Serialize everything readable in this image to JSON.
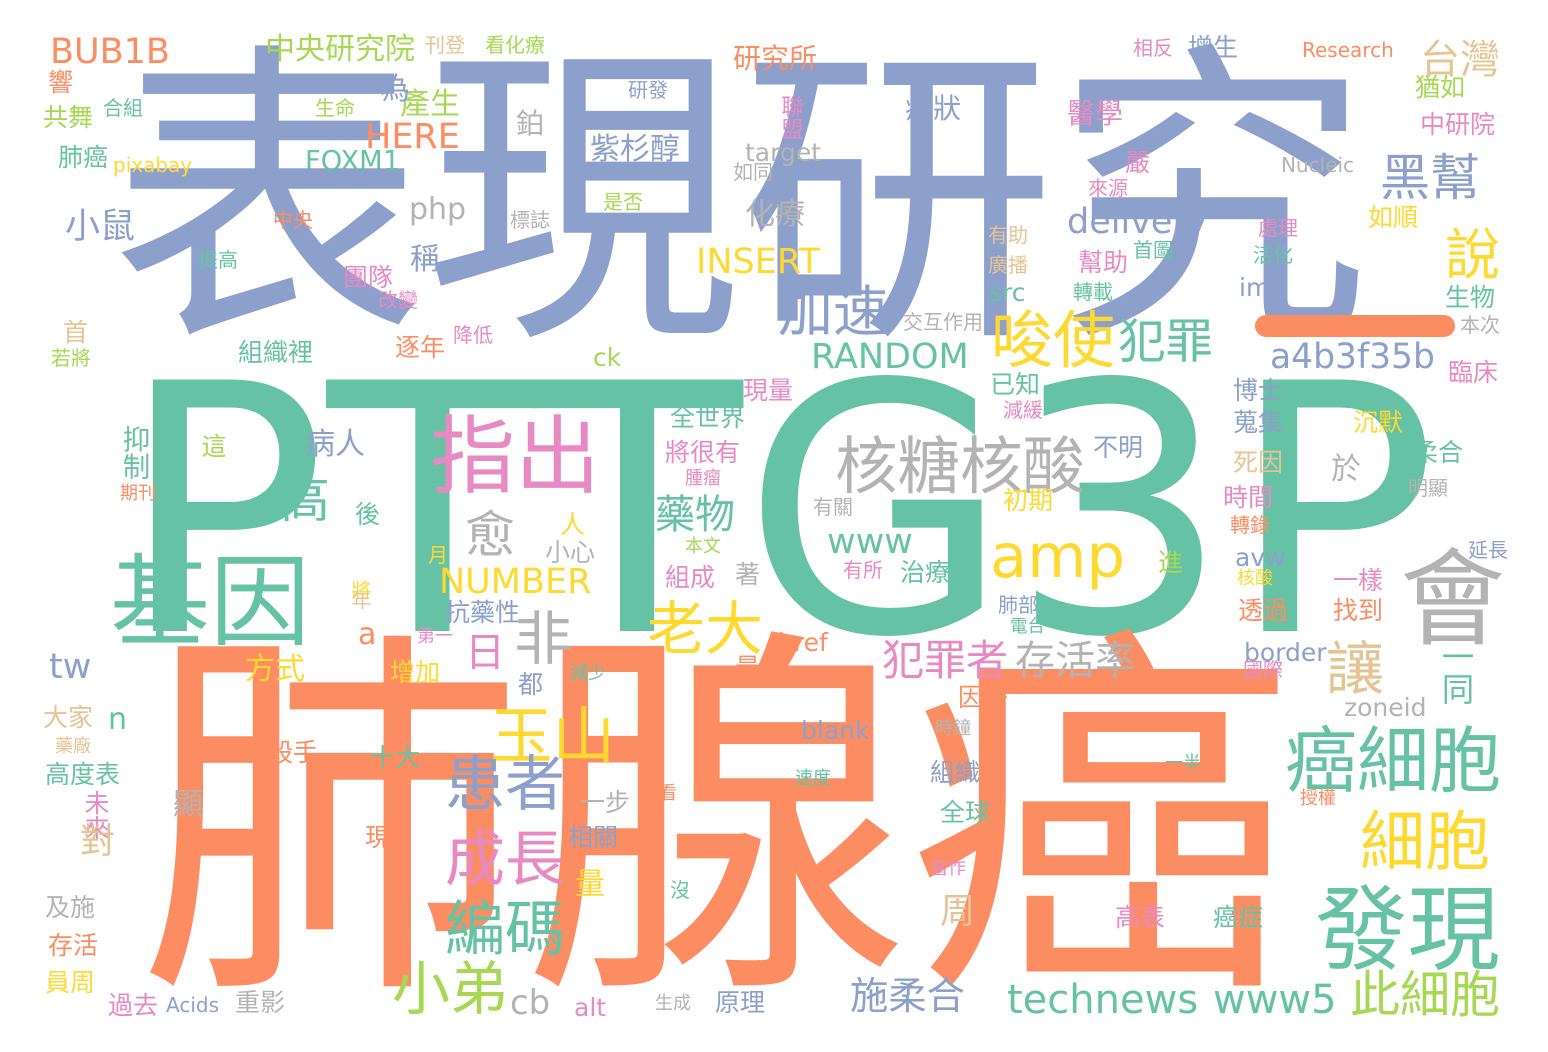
{
  "palette": {
    "orange": "#fc8d62",
    "green": "#66c2a5",
    "blue": "#8da0cb",
    "pink": "#e78ac3",
    "lime": "#a6d854",
    "yellow": "#ffd92f",
    "tan": "#e5c494",
    "gray": "#b3b3b3"
  },
  "words": [
    {
      "text": "表現研究",
      "color": "blue"
    },
    {
      "text": "PTTG3P",
      "color": "green"
    },
    {
      "text": "肺腺癌",
      "color": "orange"
    },
    {
      "text": "基因",
      "color": "green"
    },
    {
      "text": "指出",
      "color": "pink"
    },
    {
      "text": "amp",
      "color": "yellow"
    },
    {
      "text": "會",
      "color": "gray"
    },
    {
      "text": "核糖核酸",
      "color": "gray"
    },
    {
      "text": "唆使",
      "color": "yellow"
    },
    {
      "text": "犯罪",
      "color": "green"
    },
    {
      "text": "加速",
      "color": "blue"
    },
    {
      "text": "聯盟",
      "color": "pink"
    },
    {
      "text": "黑幫",
      "color": "blue"
    },
    {
      "text": "說",
      "color": "yellow"
    },
    {
      "text": "癌細胞",
      "color": "green"
    },
    {
      "text": "細胞",
      "color": "yellow"
    },
    {
      "text": "發現",
      "color": "green"
    },
    {
      "text": "玉山",
      "color": "yellow"
    },
    {
      "text": "患者",
      "color": "blue"
    },
    {
      "text": "成長",
      "color": "pink"
    },
    {
      "text": "編碼",
      "color": "green"
    },
    {
      "text": "老大",
      "color": "yellow"
    },
    {
      "text": "小弟",
      "color": "lime"
    },
    {
      "text": "非",
      "color": "gray"
    },
    {
      "text": "愈",
      "color": "gray"
    },
    {
      "text": "日",
      "color": "pink"
    },
    {
      "text": "高",
      "color": "green"
    },
    {
      "text": "抑制",
      "color": "green"
    },
    {
      "text": "讓",
      "color": "tan"
    },
    {
      "text": "一同",
      "color": "green"
    },
    {
      "text": "犯罪者",
      "color": "pink"
    },
    {
      "text": "存活率",
      "color": "gray"
    },
    {
      "text": "此細胞",
      "color": "lime"
    },
    {
      "text": "technews",
      "color": "green"
    },
    {
      "text": "www5",
      "color": "green"
    },
    {
      "text": "施柔合",
      "color": "blue"
    },
    {
      "text": "RANDOM",
      "color": "green"
    },
    {
      "text": "INSERT",
      "color": "yellow"
    },
    {
      "text": "NUMBER",
      "color": "yellow"
    },
    {
      "text": "delivery",
      "color": "blue"
    },
    {
      "text": "a4b3f35b",
      "color": "blue"
    },
    {
      "text": "www",
      "color": "green"
    },
    {
      "text": "藥物",
      "color": "green"
    },
    {
      "text": "未來",
      "color": "pink"
    },
    {
      "text": "台灣",
      "color": "tan"
    },
    {
      "text": "BUB1B",
      "color": "orange"
    },
    {
      "text": "中央研究院",
      "color": "lime"
    },
    {
      "text": "研究所",
      "color": "orange"
    },
    {
      "text": "HERE",
      "color": "orange"
    },
    {
      "text": "FOXM1",
      "color": "green"
    },
    {
      "text": "紫杉醇",
      "color": "blue"
    },
    {
      "text": "化療",
      "color": "gray"
    },
    {
      "text": "php",
      "color": "gray"
    },
    {
      "text": "小鼠",
      "color": "blue"
    },
    {
      "text": "病人",
      "color": "blue"
    },
    {
      "text": "方式",
      "color": "yellow"
    },
    {
      "text": "tw",
      "color": "blue"
    },
    {
      "text": "a",
      "color": "orange"
    },
    {
      "text": "n",
      "color": "green"
    },
    {
      "text": "cb",
      "color": "gray"
    },
    {
      "text": "border",
      "color": "blue"
    },
    {
      "text": "zoneid",
      "color": "gray"
    },
    {
      "text": "blank",
      "color": "blue"
    },
    {
      "text": "href",
      "color": "orange"
    },
    {
      "text": "alt",
      "color": "pink"
    },
    {
      "text": "img",
      "color": "blue"
    },
    {
      "text": "src",
      "color": "green"
    },
    {
      "text": "ck",
      "color": "lime"
    },
    {
      "text": "avw",
      "color": "blue"
    },
    {
      "text": "target",
      "color": "gray"
    },
    {
      "text": "Research",
      "color": "orange"
    },
    {
      "text": "Nucleic",
      "color": "gray"
    },
    {
      "text": "Acids",
      "color": "blue"
    },
    {
      "text": "pixabay",
      "color": "yellow"
    },
    {
      "text": "增生",
      "color": "blue"
    },
    {
      "text": "相反",
      "color": "pink"
    },
    {
      "text": "刊登",
      "color": "tan"
    },
    {
      "text": "看化療",
      "color": "lime"
    },
    {
      "text": "症狀",
      "color": "blue"
    },
    {
      "text": "醫學",
      "color": "pink"
    },
    {
      "text": "產生",
      "color": "lime"
    },
    {
      "text": "為",
      "color": "blue"
    },
    {
      "text": "鉑",
      "color": "gray"
    },
    {
      "text": "研發",
      "color": "blue"
    },
    {
      "text": "生命",
      "color": "lime"
    },
    {
      "text": "合組",
      "color": "green"
    },
    {
      "text": "共舞",
      "color": "lime"
    },
    {
      "text": "肺癌",
      "color": "green"
    },
    {
      "text": "響",
      "color": "orange"
    },
    {
      "text": "猶如",
      "color": "lime"
    },
    {
      "text": "中研院",
      "color": "pink"
    },
    {
      "text": "嚴",
      "color": "pink"
    },
    {
      "text": "來源",
      "color": "pink"
    },
    {
      "text": "如同",
      "color": "gray"
    },
    {
      "text": "是否",
      "color": "lime"
    },
    {
      "text": "標誌",
      "color": "gray"
    },
    {
      "text": "中央",
      "color": "orange"
    },
    {
      "text": "提高",
      "color": "green"
    },
    {
      "text": "稱",
      "color": "blue"
    },
    {
      "text": "團隊",
      "color": "pink"
    },
    {
      "text": "改變",
      "color": "pink"
    },
    {
      "text": "有助",
      "color": "tan"
    },
    {
      "text": "首圖",
      "color": "green"
    },
    {
      "text": "幫助",
      "color": "pink"
    },
    {
      "text": "廣播",
      "color": "tan"
    },
    {
      "text": "轉載",
      "color": "green"
    },
    {
      "text": "處理",
      "color": "pink"
    },
    {
      "text": "活化",
      "color": "green"
    },
    {
      "text": "如順",
      "color": "yellow"
    },
    {
      "text": "生物",
      "color": "green"
    },
    {
      "text": "本次",
      "color": "gray"
    },
    {
      "text": "交互作用",
      "color": "gray"
    },
    {
      "text": "降低",
      "color": "pink"
    },
    {
      "text": "組織裡",
      "color": "green"
    },
    {
      "text": "逐年",
      "color": "orange"
    },
    {
      "text": "首",
      "color": "tan"
    },
    {
      "text": "若將",
      "color": "lime"
    },
    {
      "text": "臨床",
      "color": "pink"
    },
    {
      "text": "博士",
      "color": "blue"
    },
    {
      "text": "現量",
      "color": "pink"
    },
    {
      "text": "已知",
      "color": "green"
    },
    {
      "text": "減緩",
      "color": "pink"
    },
    {
      "text": "全世界",
      "color": "green"
    },
    {
      "text": "將很有",
      "color": "pink"
    },
    {
      "text": "不明",
      "color": "blue"
    },
    {
      "text": "蒐集",
      "color": "blue"
    },
    {
      "text": "沉默",
      "color": "yellow"
    },
    {
      "text": "死因",
      "color": "tan"
    },
    {
      "text": "柔合",
      "color": "green"
    },
    {
      "text": "於",
      "color": "gray"
    },
    {
      "text": "時間",
      "color": "pink"
    },
    {
      "text": "初期",
      "color": "yellow"
    },
    {
      "text": "有關",
      "color": "gray"
    },
    {
      "text": "腫瘤",
      "color": "pink"
    },
    {
      "text": "本文",
      "color": "lime"
    },
    {
      "text": "明顯",
      "color": "gray"
    },
    {
      "text": "轉錄",
      "color": "orange"
    },
    {
      "text": "這",
      "color": "lime"
    },
    {
      "text": "期刊",
      "color": "orange"
    },
    {
      "text": "後",
      "color": "green"
    },
    {
      "text": "人",
      "color": "yellow"
    },
    {
      "text": "小心",
      "color": "gray"
    },
    {
      "text": "月",
      "color": "yellow"
    },
    {
      "text": "將",
      "color": "yellow"
    },
    {
      "text": "年",
      "color": "tan"
    },
    {
      "text": "有所",
      "color": "pink"
    },
    {
      "text": "治療",
      "color": "green"
    },
    {
      "text": "組成",
      "color": "pink"
    },
    {
      "text": "著",
      "color": "gray"
    },
    {
      "text": "進",
      "color": "lime"
    },
    {
      "text": "核酸",
      "color": "yellow"
    },
    {
      "text": "延長",
      "color": "blue"
    },
    {
      "text": "一樣",
      "color": "pink"
    },
    {
      "text": "找到",
      "color": "orange"
    },
    {
      "text": "透過",
      "color": "orange"
    },
    {
      "text": "抗藥性",
      "color": "blue"
    },
    {
      "text": "第一",
      "color": "pink"
    },
    {
      "text": "肺部",
      "color": "blue"
    },
    {
      "text": "電台",
      "color": "green"
    },
    {
      "text": "國際",
      "color": "pink"
    },
    {
      "text": "增加",
      "color": "yellow"
    },
    {
      "text": "都",
      "color": "blue"
    },
    {
      "text": "減少",
      "color": "green"
    },
    {
      "text": "最顯",
      "color": "orange"
    },
    {
      "text": "因子",
      "color": "orange"
    },
    {
      "text": "大家",
      "color": "tan"
    },
    {
      "text": "藥廠",
      "color": "tan"
    },
    {
      "text": "高度表",
      "color": "green"
    },
    {
      "text": "殺手",
      "color": "orange"
    },
    {
      "text": "十大",
      "color": "green"
    },
    {
      "text": "時鐘",
      "color": "gray"
    },
    {
      "text": "組織",
      "color": "blue"
    },
    {
      "text": "速度",
      "color": "green"
    },
    {
      "text": "一半",
      "color": "green"
    },
    {
      "text": "授權",
      "color": "orange"
    },
    {
      "text": "顯",
      "color": "gray"
    },
    {
      "text": "一步",
      "color": "gray"
    },
    {
      "text": "看",
      "color": "orange"
    },
    {
      "text": "全球",
      "color": "green"
    },
    {
      "text": "對",
      "color": "tan"
    },
    {
      "text": "量",
      "color": "yellow"
    },
    {
      "text": "現",
      "color": "orange"
    },
    {
      "text": "相關",
      "color": "blue"
    },
    {
      "text": "周",
      "color": "tan"
    },
    {
      "text": "當作",
      "color": "pink"
    },
    {
      "text": "沒",
      "color": "green"
    },
    {
      "text": "高表",
      "color": "pink"
    },
    {
      "text": "癌症",
      "color": "green"
    },
    {
      "text": "及施",
      "color": "gray"
    },
    {
      "text": "存活",
      "color": "orange"
    },
    {
      "text": "員周",
      "color": "yellow"
    },
    {
      "text": "過去",
      "color": "pink"
    },
    {
      "text": "重影",
      "color": "gray"
    },
    {
      "text": "生成",
      "color": "gray"
    },
    {
      "text": "原理",
      "color": "blue"
    }
  ]
}
